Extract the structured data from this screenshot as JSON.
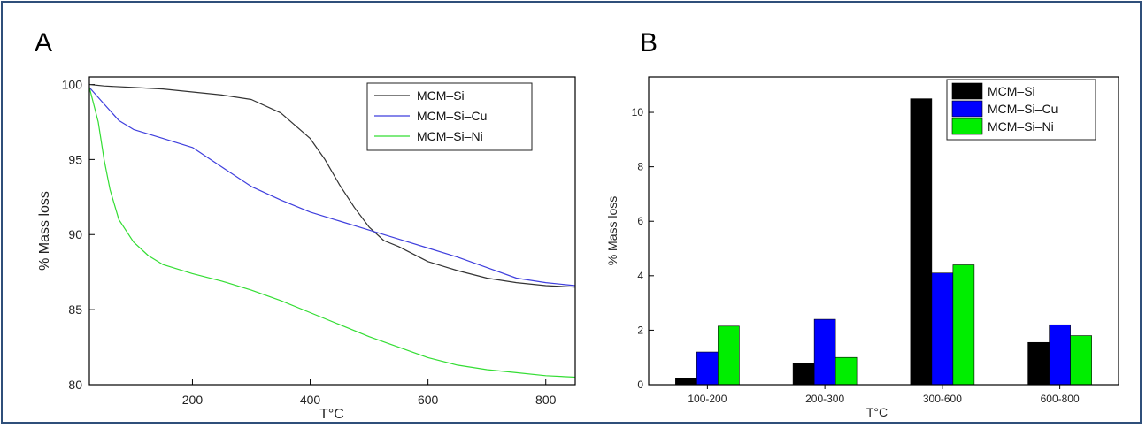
{
  "chart_data": [
    {
      "panel_label": "A",
      "type": "line",
      "xlabel": "T°C",
      "ylabel": "% Mass loss",
      "xlim": [
        25,
        850
      ],
      "ylim": [
        80,
        100.5
      ],
      "xticks": [
        200,
        400,
        600,
        800
      ],
      "yticks": [
        80,
        85,
        90,
        95,
        100
      ],
      "legend_position": "top-right",
      "series": [
        {
          "name": "MCM–Si",
          "color": "#333333",
          "x": [
            25,
            50,
            100,
            150,
            200,
            250,
            300,
            350,
            400,
            425,
            450,
            475,
            500,
            525,
            550,
            600,
            650,
            700,
            750,
            800,
            850
          ],
          "y": [
            100,
            99.9,
            99.8,
            99.7,
            99.5,
            99.3,
            99.0,
            98.1,
            96.4,
            95.0,
            93.3,
            91.8,
            90.5,
            89.6,
            89.2,
            88.2,
            87.6,
            87.1,
            86.8,
            86.6,
            86.5
          ]
        },
        {
          "name": "MCM–Si–Cu",
          "color": "#3f3fdd",
          "x": [
            25,
            50,
            75,
            100,
            150,
            200,
            250,
            300,
            350,
            400,
            450,
            500,
            550,
            600,
            650,
            700,
            750,
            800,
            850
          ],
          "y": [
            99.8,
            98.7,
            97.6,
            97.0,
            96.4,
            95.8,
            94.5,
            93.2,
            92.3,
            91.5,
            90.9,
            90.3,
            89.7,
            89.1,
            88.5,
            87.8,
            87.1,
            86.8,
            86.6
          ]
        },
        {
          "name": "MCM–Si–Ni",
          "color": "#33dd33",
          "x": [
            25,
            40,
            50,
            60,
            75,
            100,
            125,
            150,
            200,
            250,
            300,
            350,
            400,
            450,
            500,
            550,
            600,
            650,
            700,
            750,
            800,
            850
          ],
          "y": [
            99.8,
            97.5,
            95.0,
            93.0,
            91.0,
            89.5,
            88.6,
            88.0,
            87.4,
            86.9,
            86.3,
            85.6,
            84.8,
            84.0,
            83.2,
            82.5,
            81.8,
            81.3,
            81.0,
            80.8,
            80.6,
            80.5
          ]
        }
      ]
    },
    {
      "panel_label": "B",
      "type": "bar",
      "xlabel": "T°C",
      "ylabel": "% Mass loss",
      "ylim": [
        0,
        11.3
      ],
      "yticks": [
        0,
        2,
        4,
        6,
        8,
        10
      ],
      "categories": [
        "100-200",
        "200-300",
        "300-600",
        "600-800"
      ],
      "legend_position": "top-right",
      "series": [
        {
          "name": "MCM–Si",
          "color": "#000000",
          "values": [
            0.25,
            0.8,
            10.5,
            1.55
          ]
        },
        {
          "name": "MCM–Si–Cu",
          "color": "#0000ff",
          "values": [
            1.2,
            2.4,
            4.1,
            2.2
          ]
        },
        {
          "name": "MCM–Si–Ni",
          "color": "#00ee00",
          "values": [
            2.15,
            1.0,
            4.4,
            1.8
          ]
        }
      ]
    }
  ]
}
